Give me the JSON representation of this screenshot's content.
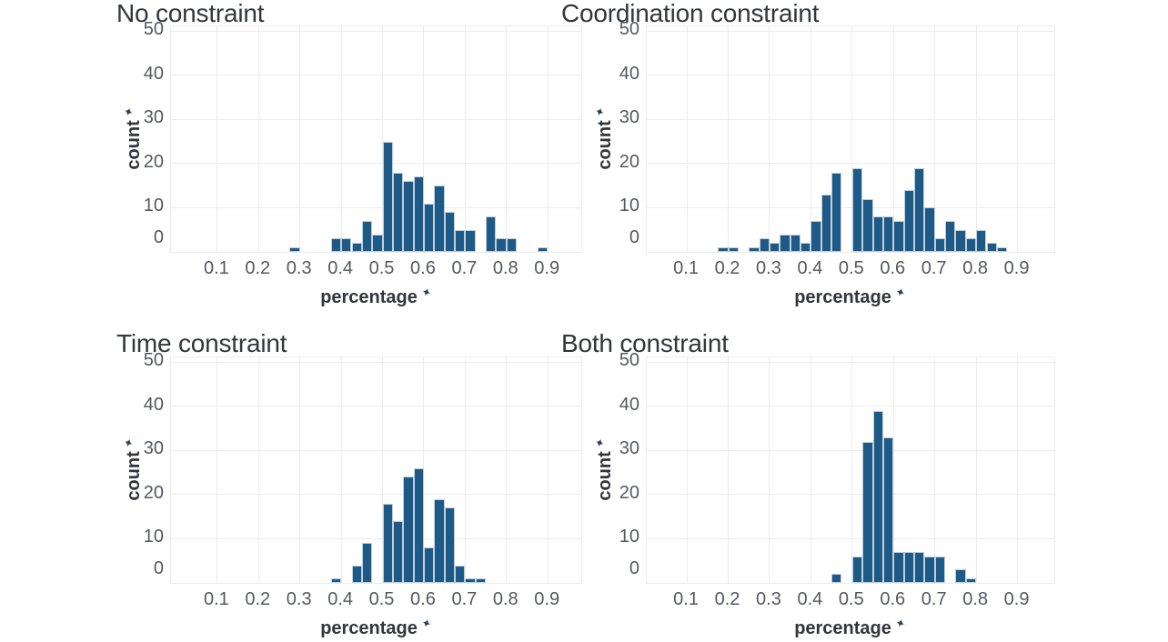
{
  "axes": {
    "x_label": "percentage",
    "y_label": "count",
    "star_icon": "✦",
    "x_ticks": [
      0.1,
      0.2,
      0.3,
      0.4,
      0.5,
      0.6,
      0.7,
      0.8,
      0.9
    ],
    "y_ticks": [
      0,
      10,
      20,
      30,
      40,
      50
    ],
    "y_max": 51.05,
    "bin_width": 0.025,
    "grid": true
  },
  "style": {
    "bar_color": "#1d5a87",
    "bar_border_color": "#c2ced8",
    "grid_color": "#ececec",
    "tick_color": "#55585f",
    "title_color": "#34363e",
    "axis_label_color": "#33353b",
    "background": "#ffffff"
  },
  "chart_data": [
    {
      "type": "bar",
      "title": "No constraint",
      "xlabel": "percentage",
      "ylabel": "count",
      "x_domain": [
        -0.012,
        0.981
      ],
      "ylim": [
        0,
        51
      ],
      "bins": [
        {
          "x": 0.275,
          "count": 1
        },
        {
          "x": 0.375,
          "count": 3
        },
        {
          "x": 0.4,
          "count": 3
        },
        {
          "x": 0.425,
          "count": 2
        },
        {
          "x": 0.45,
          "count": 7
        },
        {
          "x": 0.475,
          "count": 4
        },
        {
          "x": 0.5,
          "count": 25
        },
        {
          "x": 0.525,
          "count": 18
        },
        {
          "x": 0.55,
          "count": 16
        },
        {
          "x": 0.575,
          "count": 17
        },
        {
          "x": 0.6,
          "count": 11
        },
        {
          "x": 0.625,
          "count": 15
        },
        {
          "x": 0.65,
          "count": 9
        },
        {
          "x": 0.675,
          "count": 5
        },
        {
          "x": 0.7,
          "count": 5
        },
        {
          "x": 0.75,
          "count": 8
        },
        {
          "x": 0.775,
          "count": 3
        },
        {
          "x": 0.8,
          "count": 3
        },
        {
          "x": 0.875,
          "count": 1
        }
      ]
    },
    {
      "type": "bar",
      "title": "Coordination constraint",
      "xlabel": "percentage",
      "ylabel": "count",
      "x_domain": [
        0.003,
        0.989
      ],
      "ylim": [
        0,
        51
      ],
      "bins": [
        {
          "x": 0.175,
          "count": 1
        },
        {
          "x": 0.2,
          "count": 1
        },
        {
          "x": 0.25,
          "count": 1
        },
        {
          "x": 0.275,
          "count": 3
        },
        {
          "x": 0.3,
          "count": 2
        },
        {
          "x": 0.325,
          "count": 4
        },
        {
          "x": 0.35,
          "count": 4
        },
        {
          "x": 0.375,
          "count": 2
        },
        {
          "x": 0.4,
          "count": 7
        },
        {
          "x": 0.425,
          "count": 13
        },
        {
          "x": 0.45,
          "count": 18
        },
        {
          "x": 0.5,
          "count": 19
        },
        {
          "x": 0.525,
          "count": 12
        },
        {
          "x": 0.55,
          "count": 8
        },
        {
          "x": 0.575,
          "count": 8
        },
        {
          "x": 0.6,
          "count": 7
        },
        {
          "x": 0.625,
          "count": 14
        },
        {
          "x": 0.65,
          "count": 19
        },
        {
          "x": 0.675,
          "count": 10
        },
        {
          "x": 0.7,
          "count": 3
        },
        {
          "x": 0.725,
          "count": 7
        },
        {
          "x": 0.75,
          "count": 5
        },
        {
          "x": 0.775,
          "count": 3
        },
        {
          "x": 0.8,
          "count": 5
        },
        {
          "x": 0.825,
          "count": 2
        },
        {
          "x": 0.85,
          "count": 1
        }
      ]
    },
    {
      "type": "bar",
      "title": "Time constraint",
      "xlabel": "percentage",
      "ylabel": "count",
      "x_domain": [
        -0.012,
        0.981
      ],
      "ylim": [
        0,
        51
      ],
      "bins": [
        {
          "x": 0.375,
          "count": 1
        },
        {
          "x": 0.425,
          "count": 4
        },
        {
          "x": 0.45,
          "count": 9
        },
        {
          "x": 0.5,
          "count": 18
        },
        {
          "x": 0.525,
          "count": 14
        },
        {
          "x": 0.55,
          "count": 24
        },
        {
          "x": 0.575,
          "count": 26
        },
        {
          "x": 0.6,
          "count": 8
        },
        {
          "x": 0.625,
          "count": 19
        },
        {
          "x": 0.65,
          "count": 17
        },
        {
          "x": 0.675,
          "count": 4
        },
        {
          "x": 0.7,
          "count": 1
        },
        {
          "x": 0.725,
          "count": 1
        }
      ]
    },
    {
      "type": "bar",
      "title": "Both constraint",
      "xlabel": "percentage",
      "ylabel": "count",
      "x_domain": [
        0.003,
        0.989
      ],
      "ylim": [
        0,
        51
      ],
      "bins": [
        {
          "x": 0.45,
          "count": 2
        },
        {
          "x": 0.5,
          "count": 6
        },
        {
          "x": 0.525,
          "count": 32
        },
        {
          "x": 0.55,
          "count": 39
        },
        {
          "x": 0.575,
          "count": 33
        },
        {
          "x": 0.6,
          "count": 7
        },
        {
          "x": 0.625,
          "count": 7
        },
        {
          "x": 0.65,
          "count": 7
        },
        {
          "x": 0.675,
          "count": 6
        },
        {
          "x": 0.7,
          "count": 6
        },
        {
          "x": 0.75,
          "count": 3
        },
        {
          "x": 0.775,
          "count": 1
        }
      ]
    }
  ]
}
